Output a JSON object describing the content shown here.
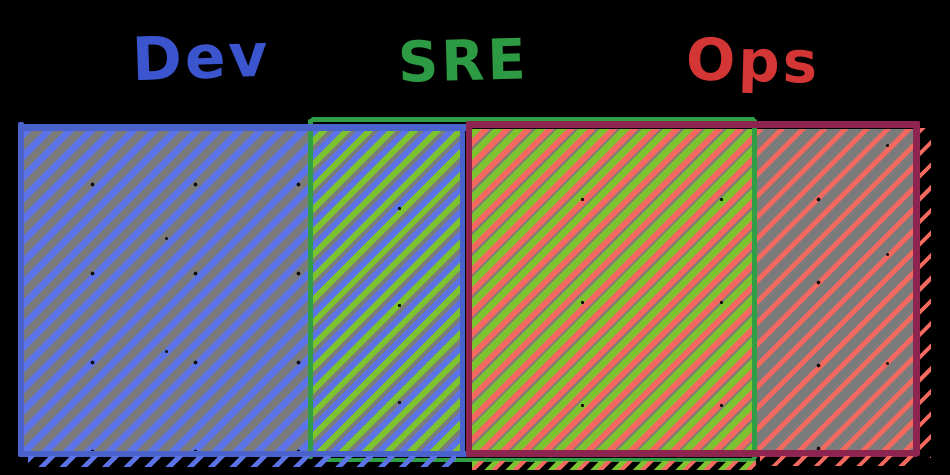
{
  "labels": [
    {
      "id": "dev",
      "text": "Dev",
      "color": "#3b55cf"
    },
    {
      "id": "sre",
      "text": "SRE",
      "color": "#2d9b43"
    },
    {
      "id": "ops",
      "text": "Ops",
      "color": "#d43535"
    }
  ],
  "palette": {
    "background": "#000000",
    "panel_gray": "#7b7b7b",
    "dev_label": "#3b55cf",
    "sre_label": "#2d9b43",
    "ops_label": "#d43535",
    "blue_stroke": "#4a63cc",
    "blue_fill": "#5b73e6",
    "green_stroke": "#2f9e44",
    "green_fill": "#7cc32f",
    "maroon_stroke": "#8e2450",
    "red_fill": "#f4695f"
  }
}
